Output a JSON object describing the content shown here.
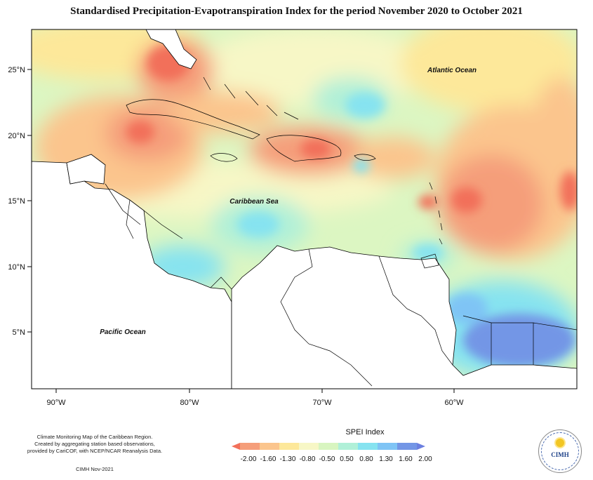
{
  "title": "Standardised Precipitation-Evapotranspiration Index for the period November 2020 to October 2021",
  "map": {
    "lat_ticks": [
      "25°N",
      "20°N",
      "15°N",
      "10°N",
      "5°N"
    ],
    "lon_ticks": [
      "90°W",
      "80°W",
      "70°W",
      "60°W"
    ],
    "ocean_labels": {
      "atlantic": "Atlantic Ocean",
      "caribbean": "Caribbean Sea",
      "pacific": "Pacific Ocean"
    }
  },
  "legend": {
    "title": "SPEI Index",
    "labels": [
      "-2.00",
      "-1.60",
      "-1.30",
      "-0.80",
      "-0.50",
      "0.50",
      "0.80",
      "1.30",
      "1.60",
      "2.00"
    ],
    "colors": [
      "#f2705a",
      "#f59e7a",
      "#fbc58d",
      "#fde89a",
      "#f7f7c6",
      "#d8f5c0",
      "#b0f0d8",
      "#86e3f0",
      "#7fc4f5",
      "#7396e6",
      "#6b7fe0"
    ]
  },
  "caption": {
    "line1": "Climate Monitoring Map of the Caribbean Region.",
    "line2": "Created by aggregating station based observations,",
    "line3": "provided by CariCOF, with NCEP/NCAR Reanalysis Data.",
    "credit": "CIMH Nov-2021"
  },
  "logo": {
    "text": "CIMH"
  }
}
